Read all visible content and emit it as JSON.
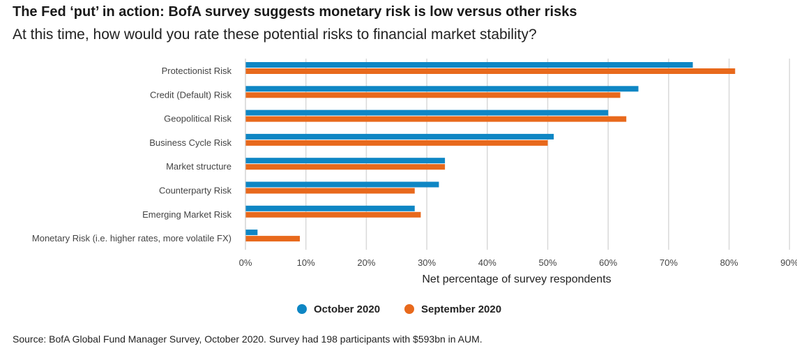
{
  "header": {
    "title": "The Fed ‘put’ in action: BofA survey suggests monetary risk is low versus other risks",
    "subtitle": "At this time, how would you rate these potential risks to financial market stability?"
  },
  "source": "Source: BofA Global Fund Manager Survey, October 2020. Survey had 198 participants with $593bn in AUM.",
  "chart_data": {
    "type": "bar",
    "orientation": "horizontal",
    "categories": [
      "Protectionist Risk",
      "Credit (Default) Risk",
      "Geopolitical Risk",
      "Business Cycle Risk",
      "Market structure",
      "Counterparty Risk",
      "Emerging Market Risk",
      "Monetary Risk (i.e. higher rates, more volatile FX)"
    ],
    "series": [
      {
        "name": "October 2020",
        "color": "#0e86c4",
        "values": [
          74,
          65,
          60,
          51,
          33,
          32,
          28,
          2
        ]
      },
      {
        "name": "September 2020",
        "color": "#e8691c",
        "values": [
          81,
          62,
          63,
          50,
          33,
          28,
          29,
          9
        ]
      }
    ],
    "xlabel": "Net percentage of survey respondents",
    "xlim": [
      0,
      90
    ],
    "xticks": [
      "0%",
      "10%",
      "20%",
      "30%",
      "40%",
      "50%",
      "60%",
      "70%",
      "80%",
      "90%"
    ],
    "grid": "vertical",
    "legend_position": "bottom"
  }
}
